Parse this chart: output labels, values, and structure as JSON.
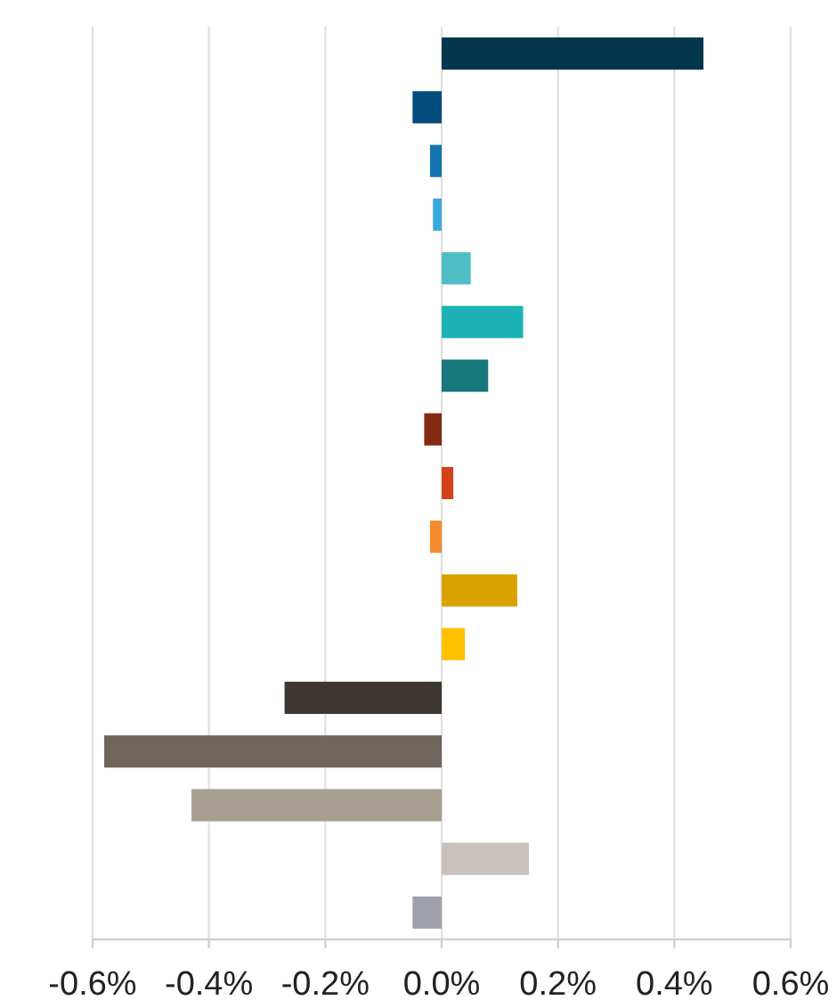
{
  "chart_data": {
    "type": "bar",
    "orientation": "horizontal",
    "categories": [
      null,
      null,
      null,
      null,
      null,
      null,
      null,
      null,
      null,
      null,
      null,
      null,
      null,
      null,
      null,
      null,
      null
    ],
    "values": [
      0.45,
      -0.05,
      -0.02,
      -0.015,
      0.05,
      0.14,
      0.08,
      -0.03,
      0.02,
      -0.02,
      0.13,
      0.04,
      -0.27,
      -0.58,
      -0.43,
      0.15,
      -0.05
    ],
    "colors": [
      "#03354d",
      "#024d7c",
      "#1474b0",
      "#3aaadc",
      "#4fbfc5",
      "#1db2b5",
      "#17777b",
      "#842a12",
      "#d4421a",
      "#f28c2e",
      "#d9a200",
      "#ffc000",
      "#3c3730",
      "#6f655b",
      "#a89d91",
      "#c9c1bb",
      "#a0a0aa"
    ],
    "xlim": [
      -0.6,
      0.6
    ],
    "xticks": [
      {
        "value": -0.6,
        "label": "-0.6%"
      },
      {
        "value": -0.4,
        "label": "-0.4%"
      },
      {
        "value": -0.2,
        "label": "-0.2%"
      },
      {
        "value": 0,
        "label": "0.0%"
      },
      {
        "value": 0.2,
        "label": "0.2%"
      },
      {
        "value": 0.4,
        "label": "0.4%"
      },
      {
        "value": 0.6,
        "label": "0.6%"
      }
    ],
    "grid": "x"
  }
}
